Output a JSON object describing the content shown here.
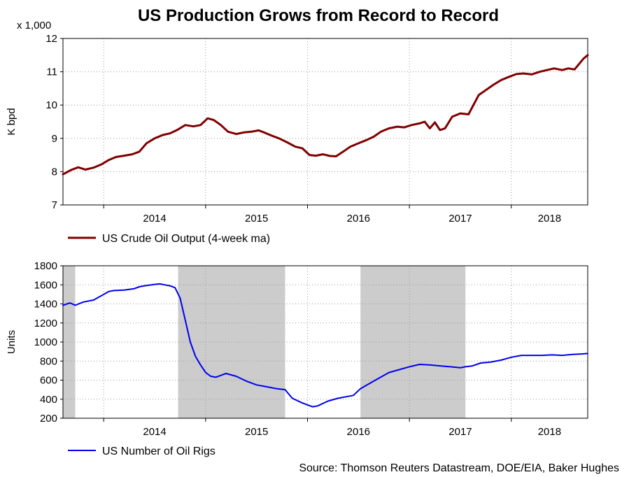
{
  "title": "US Production Grows from Record to Record",
  "source": "Source: Thomson Reuters Datastream, DOE/EIA, Baker Hughes",
  "colors": {
    "output": "#800000",
    "rigs": "#0000ee",
    "shade": "#cccccc",
    "grid": "#9a9a9a"
  },
  "chart_data": [
    {
      "type": "line",
      "id": "output",
      "multiplier_label": "x 1,000",
      "ylabel": "K bpd",
      "ylim": [
        7,
        12
      ],
      "yticks": [
        "7",
        "8",
        "9",
        "10",
        "11",
        "12"
      ],
      "x_range": [
        2013.6,
        2018.75
      ],
      "year_ticks": [
        2014,
        2015,
        2016,
        2017,
        2018
      ],
      "x_labels": [
        "2014",
        "2015",
        "2016",
        "2017",
        "2018"
      ],
      "legend": "US Crude Oil Output (4-week ma)",
      "series": [
        {
          "name": "US Crude Oil Output (4-week ma)",
          "x": [
            2013.6,
            2013.68,
            2013.75,
            2013.82,
            2013.9,
            2013.98,
            2014.05,
            2014.12,
            2014.2,
            2014.28,
            2014.35,
            2014.42,
            2014.5,
            2014.58,
            2014.65,
            2014.72,
            2014.8,
            2014.88,
            2014.95,
            2015.02,
            2015.08,
            2015.15,
            2015.22,
            2015.3,
            2015.38,
            2015.45,
            2015.52,
            2015.58,
            2015.65,
            2015.72,
            2015.8,
            2015.88,
            2015.95,
            2016.02,
            2016.08,
            2016.15,
            2016.22,
            2016.28,
            2016.35,
            2016.42,
            2016.5,
            2016.58,
            2016.65,
            2016.72,
            2016.8,
            2016.88,
            2016.95,
            2017.02,
            2017.1,
            2017.15,
            2017.2,
            2017.25,
            2017.3,
            2017.35,
            2017.42,
            2017.5,
            2017.58,
            2017.62,
            2017.68,
            2017.75,
            2017.82,
            2017.9,
            2017.98,
            2018.05,
            2018.12,
            2018.2,
            2018.28,
            2018.35,
            2018.42,
            2018.5,
            2018.56,
            2018.62,
            2018.67,
            2018.71,
            2018.75
          ],
          "y": [
            7.92,
            8.05,
            8.13,
            8.06,
            8.12,
            8.22,
            8.35,
            8.44,
            8.48,
            8.52,
            8.6,
            8.85,
            9.0,
            9.1,
            9.15,
            9.25,
            9.4,
            9.36,
            9.4,
            9.6,
            9.55,
            9.4,
            9.2,
            9.13,
            9.18,
            9.2,
            9.24,
            9.17,
            9.08,
            9.0,
            8.88,
            8.75,
            8.7,
            8.5,
            8.48,
            8.52,
            8.47,
            8.46,
            8.6,
            8.75,
            8.85,
            8.95,
            9.05,
            9.2,
            9.3,
            9.35,
            9.33,
            9.4,
            9.45,
            9.5,
            9.3,
            9.48,
            9.25,
            9.3,
            9.65,
            9.75,
            9.72,
            9.95,
            10.3,
            10.45,
            10.6,
            10.75,
            10.85,
            10.93,
            10.95,
            10.92,
            11.0,
            11.05,
            11.1,
            11.05,
            11.1,
            11.07,
            11.25,
            11.4,
            11.5
          ]
        }
      ]
    },
    {
      "type": "line",
      "id": "rigs",
      "ylabel": "Units",
      "ylim": [
        200,
        1800
      ],
      "yticks": [
        "200",
        "400",
        "600",
        "800",
        "1000",
        "1200",
        "1400",
        "1600",
        "1800"
      ],
      "x_range": [
        2013.6,
        2018.75
      ],
      "year_ticks": [
        2014,
        2015,
        2016,
        2017,
        2018
      ],
      "x_labels": [
        "2014",
        "2015",
        "2016",
        "2017",
        "2018"
      ],
      "shaded_ranges": [
        [
          2013.6,
          2013.72
        ],
        [
          2014.73,
          2015.78
        ],
        [
          2016.52,
          2017.55
        ]
      ],
      "legend": "US Number of Oil Rigs",
      "series": [
        {
          "name": "US Number of Oil Rigs",
          "x": [
            2013.6,
            2013.67,
            2013.72,
            2013.8,
            2013.9,
            2014.0,
            2014.05,
            2014.1,
            2014.2,
            2014.3,
            2014.35,
            2014.4,
            2014.5,
            2014.55,
            2014.6,
            2014.65,
            2014.7,
            2014.75,
            2014.8,
            2014.85,
            2014.9,
            2014.95,
            2015.0,
            2015.05,
            2015.1,
            2015.15,
            2015.2,
            2015.3,
            2015.4,
            2015.5,
            2015.6,
            2015.7,
            2015.78,
            2015.85,
            2015.95,
            2016.0,
            2016.05,
            2016.1,
            2016.2,
            2016.3,
            2016.4,
            2016.45,
            2016.52,
            2016.6,
            2016.7,
            2016.8,
            2016.9,
            2017.0,
            2017.1,
            2017.2,
            2017.3,
            2017.4,
            2017.5,
            2017.55,
            2017.62,
            2017.7,
            2017.8,
            2017.9,
            2018.0,
            2018.1,
            2018.2,
            2018.3,
            2018.4,
            2018.5,
            2018.6,
            2018.7,
            2018.75
          ],
          "y": [
            1385,
            1410,
            1385,
            1420,
            1440,
            1500,
            1530,
            1540,
            1545,
            1560,
            1580,
            1590,
            1605,
            1610,
            1600,
            1590,
            1570,
            1460,
            1230,
            1000,
            850,
            760,
            680,
            640,
            630,
            650,
            670,
            640,
            590,
            550,
            530,
            510,
            500,
            410,
            360,
            340,
            320,
            330,
            380,
            410,
            430,
            440,
            510,
            560,
            620,
            680,
            710,
            740,
            765,
            760,
            750,
            740,
            730,
            740,
            750,
            780,
            790,
            810,
            840,
            860,
            860,
            860,
            865,
            860,
            870,
            875,
            880
          ]
        }
      ]
    }
  ]
}
